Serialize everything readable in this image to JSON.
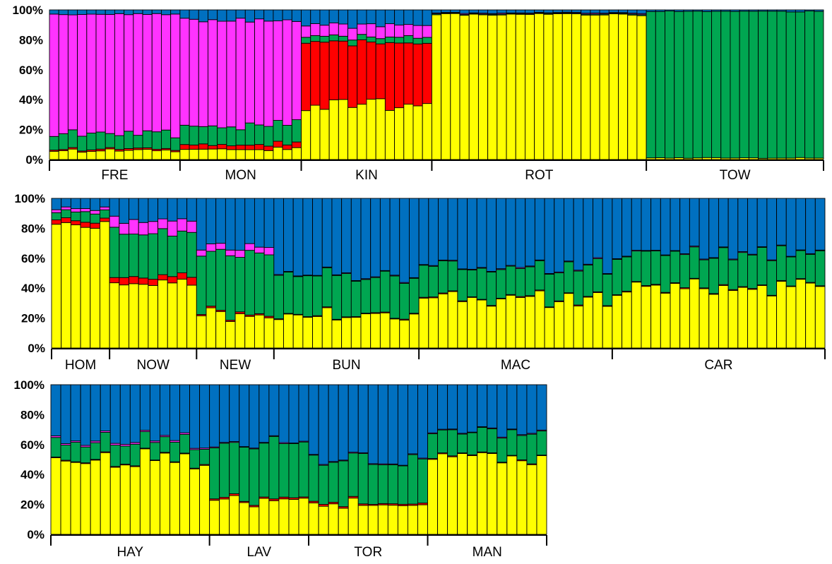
{
  "chart_data": {
    "type": "bar",
    "stacked": true,
    "normalized": true,
    "y_tick_labels": [
      "0%",
      "20%",
      "40%",
      "60%",
      "80%",
      "100%"
    ],
    "ylim": [
      0,
      100
    ],
    "grid": false,
    "legend": "none",
    "component_colors": {
      "yellow": "#ffff00",
      "red": "#ff0000",
      "green": "#00a651",
      "magenta": "#ff33ff",
      "blue": "#0070c0"
    },
    "component_order": [
      "yellow",
      "red",
      "green",
      "magenta",
      "blue"
    ],
    "panels": [
      {
        "groups": [
          {
            "label": "FRE",
            "n": 14,
            "profile": {
              "yellow": 6,
              "red": 1,
              "green": 10,
              "magenta": 80,
              "blue": 3
            }
          },
          {
            "label": "MON",
            "n": 13,
            "profile": {
              "yellow": 7,
              "red": 3,
              "green": 13,
              "magenta": 70,
              "blue": 7
            }
          },
          {
            "label": "KIN",
            "n": 14,
            "profile": {
              "yellow": 36,
              "red": 42,
              "green": 4,
              "magenta": 8,
              "blue": 10
            }
          },
          {
            "label": "ROT",
            "n": 23,
            "profile": {
              "yellow": 97,
              "red": 0,
              "green": 0.5,
              "magenta": 0.5,
              "blue": 2
            }
          },
          {
            "label": "TOW",
            "n": 19,
            "profile": {
              "yellow": 1,
              "red": 0,
              "green": 98,
              "magenta": 0,
              "blue": 1
            }
          }
        ]
      },
      {
        "groups": [
          {
            "label": "HOM",
            "n": 6,
            "profile": {
              "yellow": 82,
              "red": 3,
              "green": 6,
              "magenta": 2,
              "blue": 7
            }
          },
          {
            "label": "NOW",
            "n": 9,
            "profile": {
              "yellow": 44,
              "red": 4,
              "green": 30,
              "magenta": 8,
              "blue": 14
            }
          },
          {
            "label": "NEW",
            "n": 8,
            "profile": {
              "yellow": 22,
              "red": 1,
              "green": 40,
              "magenta": 4,
              "blue": 33
            }
          },
          {
            "label": "BUN",
            "n": 15,
            "profile": {
              "yellow": 22,
              "red": 0.5,
              "green": 27,
              "magenta": 0.5,
              "blue": 50
            }
          },
          {
            "label": "MAC",
            "n": 20,
            "profile": {
              "yellow": 32,
              "red": 0.5,
              "green": 20,
              "magenta": 0.5,
              "blue": 47
            }
          },
          {
            "label": "CAR",
            "n": 22,
            "profile": {
              "yellow": 40,
              "red": 0.5,
              "green": 22,
              "magenta": 0.5,
              "blue": 37
            }
          }
        ]
      },
      {
        "groups": [
          {
            "label": "HAY",
            "n": 16,
            "profile": {
              "yellow": 50,
              "red": 0.5,
              "green": 12,
              "magenta": 1,
              "blue": 36.5
            }
          },
          {
            "label": "LAV",
            "n": 10,
            "profile": {
              "yellow": 22,
              "red": 1,
              "green": 38,
              "magenta": 0.5,
              "blue": 38.5
            }
          },
          {
            "label": "TOR",
            "n": 12,
            "profile": {
              "yellow": 20,
              "red": 1,
              "green": 28,
              "magenta": 0.5,
              "blue": 50.5
            }
          },
          {
            "label": "MAN",
            "n": 12,
            "profile": {
              "yellow": 50,
              "red": 0.5,
              "green": 16,
              "magenta": 0.5,
              "blue": 33
            }
          }
        ]
      }
    ]
  }
}
